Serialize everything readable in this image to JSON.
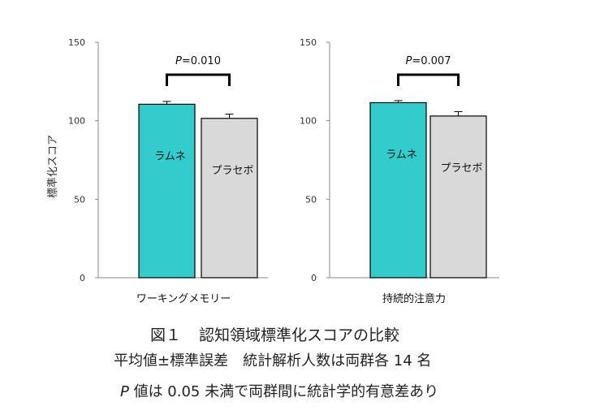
{
  "chart_data": [
    {
      "type": "bar",
      "xlabel": "ワーキングメモリー",
      "ylabel": "標準化スコア",
      "ylim": [
        0,
        150
      ],
      "yticks": [
        0,
        50,
        100,
        150
      ],
      "categories": [
        "ラムネ",
        "プラセボ"
      ],
      "values": [
        110.5,
        101.5
      ],
      "errors": [
        1.8,
        2.7
      ],
      "colors": [
        "#33CCCC",
        "#D9D9D9"
      ],
      "significance": {
        "label_prefix": "P",
        "label_rest": "=0.010"
      }
    },
    {
      "type": "bar",
      "xlabel": "持続的注意力",
      "ylabel": "",
      "ylim": [
        0,
        150
      ],
      "yticks": [
        0,
        50,
        100,
        150
      ],
      "categories": [
        "ラムネ",
        "プラセボ"
      ],
      "values": [
        111.5,
        103
      ],
      "errors": [
        1.3,
        2.8
      ],
      "colors": [
        "#33CCCC",
        "#D9D9D9"
      ],
      "significance": {
        "label_prefix": "P",
        "label_rest": "=0.007"
      }
    }
  ],
  "caption": {
    "figure_no": "図１",
    "title": "認知領域標準化スコアの比較",
    "line2": "平均値±標準誤差　統計解析人数は両群各 14 名",
    "line3_p": "P",
    "line3_rest": " 値は 0.05 未満で両群間に統計学的有意差あり"
  }
}
